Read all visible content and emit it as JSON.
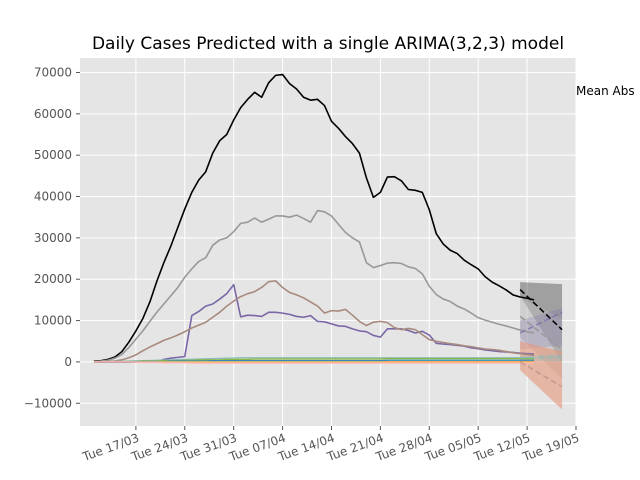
{
  "chart_data": {
    "type": "line",
    "title": "Daily Cases Predicted with a single ARIMA(3,2,3) model",
    "xlabel": "",
    "ylabel": "",
    "annotation": "Mean Abs",
    "grid": true,
    "style": "ggplot",
    "x_start": "2020-03-11",
    "x_end": "2020-05-17",
    "xlim": [
      "2020-03-09",
      "2020-05-19"
    ],
    "ylim": [
      -15500,
      73500
    ],
    "y_ticks": [
      -10000,
      0,
      10000,
      20000,
      30000,
      40000,
      50000,
      60000,
      70000
    ],
    "y_tick_labels": [
      "−10000",
      "0",
      "10000",
      "20000",
      "30000",
      "40000",
      "50000",
      "60000",
      "70000"
    ],
    "x_ticks": [
      {
        "date": "2020-03-17",
        "label": "Tue 17/03"
      },
      {
        "date": "2020-03-24",
        "label": "Tue 24/03"
      },
      {
        "date": "2020-03-31",
        "label": "Tue 31/03"
      },
      {
        "date": "2020-04-07",
        "label": "Tue 07/04"
      },
      {
        "date": "2020-04-14",
        "label": "Tue 14/04"
      },
      {
        "date": "2020-04-21",
        "label": "Tue 21/04"
      },
      {
        "date": "2020-04-28",
        "label": "Tue 28/04"
      },
      {
        "date": "2020-05-05",
        "label": "Tue 05/05"
      },
      {
        "date": "2020-05-12",
        "label": "Tue 12/05"
      },
      {
        "date": "2020-05-19",
        "label": "Tue 19/05"
      }
    ],
    "series": [
      {
        "color": "#000000",
        "width": 1.6,
        "values": [
          200,
          300,
          600,
          1200,
          2500,
          4800,
          7500,
          10500,
          14500,
          19500,
          24000,
          28000,
          32500,
          37000,
          41000,
          44000,
          46000,
          50500,
          53500,
          55000,
          58500,
          61500,
          63500,
          65200,
          64000,
          67500,
          69300,
          69500,
          67300,
          66000,
          64000,
          63300,
          63500,
          62000,
          58200,
          56500,
          54500,
          52800,
          50500,
          44500,
          39800,
          41000,
          44700,
          44800,
          43800,
          41700,
          41500,
          41000,
          36800,
          31000,
          28500,
          27000,
          26200,
          24600,
          23500,
          22500,
          20600,
          19300,
          18400,
          17400,
          16200,
          15700,
          15400,
          15000
        ]
      },
      {
        "color": "#999999",
        "width": 1.6,
        "values": [
          100,
          200,
          400,
          900,
          1800,
          3500,
          5500,
          7500,
          9800,
          12000,
          14000,
          16000,
          18000,
          20500,
          22500,
          24300,
          25200,
          28200,
          29500,
          30000,
          31500,
          33500,
          33800,
          34800,
          33800,
          34500,
          35300,
          35300,
          35000,
          35500,
          34700,
          33800,
          36600,
          36300,
          35300,
          33300,
          31300,
          30000,
          29000,
          24000,
          22800,
          23300,
          23900,
          24000,
          23800,
          23000,
          22600,
          21300,
          18300,
          16300,
          15200,
          14600,
          13500,
          12800,
          11800,
          10700,
          10100,
          9600,
          9100,
          8700,
          8200,
          7700,
          7300,
          7000
        ]
      },
      {
        "color": "#777777",
        "width": 1.6,
        "values": [
          0,
          0,
          0,
          0,
          0,
          0,
          0,
          0,
          0,
          0,
          0,
          0,
          0,
          0,
          0,
          0,
          0,
          0,
          0,
          0,
          0,
          0,
          0,
          0,
          0,
          0,
          0,
          0,
          0,
          0,
          0,
          0,
          0,
          0,
          0,
          0,
          0,
          0,
          0,
          0,
          0,
          0,
          0,
          0,
          0,
          0,
          0,
          0,
          0,
          0,
          0,
          0,
          0,
          0,
          0,
          0,
          0,
          0,
          0,
          0,
          0,
          0,
          0,
          0
        ]
      },
      {
        "color": "#7a68a6",
        "width": 1.6,
        "values": [
          0,
          0,
          0,
          0,
          0,
          0,
          0,
          0,
          0,
          0,
          600,
          900,
          1100,
          1300,
          11200,
          12200,
          13500,
          14000,
          15200,
          16500,
          18700,
          10900,
          11300,
          11200,
          11000,
          12000,
          12000,
          11800,
          11500,
          11000,
          10800,
          11200,
          9800,
          9700,
          9200,
          8700,
          8600,
          8000,
          7500,
          7300,
          6400,
          6000,
          8000,
          8000,
          8000,
          7600,
          7000,
          7400,
          6500,
          4500,
          4300,
          4200,
          4000,
          3800,
          3400,
          3200,
          2900,
          2700,
          2500,
          2400,
          2300,
          2100,
          2000,
          1900
        ]
      },
      {
        "color": "#a88a7e",
        "width": 1.6,
        "values": [
          0,
          0,
          100,
          200,
          500,
          1000,
          1700,
          2700,
          3600,
          4400,
          5200,
          5800,
          6500,
          7300,
          8200,
          8900,
          9600,
          10800,
          12000,
          13500,
          14700,
          15800,
          16500,
          17000,
          18000,
          19400,
          19600,
          18000,
          16800,
          16200,
          15500,
          14500,
          13500,
          11800,
          12400,
          12300,
          12700,
          11300,
          9800,
          8800,
          9600,
          9800,
          9500,
          8300,
          7800,
          8100,
          7800,
          6600,
          5400,
          5000,
          4700,
          4400,
          4200,
          3900,
          3700,
          3400,
          3100,
          3000,
          2800,
          2500,
          2200,
          2000,
          1800,
          1600
        ]
      },
      {
        "color": "#88bbbb",
        "width": 1.3,
        "values": [
          0,
          0,
          50,
          100,
          150,
          200,
          250,
          300,
          350,
          400,
          450,
          500,
          550,
          600,
          650,
          700,
          750,
          800,
          850,
          900,
          950,
          1000,
          1000,
          1000,
          1000,
          1000,
          1000,
          1000,
          1000,
          1000,
          1000,
          1000,
          1000,
          1000,
          1000,
          1000,
          1000,
          1000,
          1000,
          1000,
          1000,
          1000,
          1000,
          1000,
          1000,
          1000,
          1000,
          1000,
          1000,
          1000,
          1000,
          1000,
          1000,
          1000,
          1000,
          1000,
          1000,
          1000,
          1000,
          1000,
          1000,
          1000,
          1000,
          1000
        ]
      },
      {
        "color": "#8eba42",
        "width": 1.3,
        "values": [
          0,
          0,
          0,
          0,
          100,
          100,
          100,
          200,
          200,
          200,
          300,
          300,
          300,
          400,
          400,
          500,
          500,
          500,
          500,
          600,
          600,
          600,
          600,
          700,
          700,
          700,
          700,
          700,
          700,
          700,
          700,
          700,
          700,
          700,
          700,
          700,
          700,
          700,
          700,
          700,
          700,
          700,
          800,
          800,
          800,
          800,
          800,
          800,
          800,
          800,
          800,
          800,
          800,
          800,
          800,
          800,
          800,
          800,
          800,
          800,
          800,
          800,
          800,
          800
        ]
      },
      {
        "color": "#e24a33",
        "width": 1.3,
        "values": [
          0,
          0,
          0,
          0,
          0,
          0,
          0,
          0,
          0,
          0,
          0,
          0,
          0,
          0,
          0,
          0,
          0,
          0,
          0,
          0,
          0,
          0,
          0,
          0,
          0,
          0,
          0,
          0,
          0,
          0,
          0,
          0,
          0,
          0,
          0,
          0,
          0,
          0,
          0,
          0,
          0,
          0,
          0,
          0,
          0,
          0,
          0,
          0,
          0,
          0,
          0,
          0,
          0,
          0,
          0,
          0,
          0,
          0,
          0,
          0,
          0,
          0,
          0,
          0
        ]
      },
      {
        "color": "#348abd",
        "width": 1.3,
        "values": [
          0,
          0,
          0,
          0,
          0,
          0,
          100,
          100,
          100,
          100,
          100,
          200,
          200,
          200,
          200,
          200,
          200,
          300,
          300,
          300,
          300,
          300,
          300,
          300,
          300,
          300,
          300,
          300,
          300,
          300,
          300,
          300,
          300,
          300,
          300,
          300,
          300,
          300,
          300,
          300,
          300,
          300,
          400,
          400,
          400,
          400,
          400,
          400,
          400,
          400,
          400,
          400,
          400,
          400,
          400,
          400,
          400,
          400,
          400,
          400,
          400,
          400,
          400,
          400
        ]
      },
      {
        "color": "#fbc15e",
        "width": 1.3,
        "values": [
          0,
          0,
          0,
          0,
          0,
          0,
          0,
          0,
          0,
          0,
          0,
          0,
          0,
          0,
          0,
          0,
          0,
          0,
          0,
          0,
          0,
          0,
          0,
          0,
          0,
          0,
          0,
          0,
          0,
          0,
          0,
          0,
          0,
          0,
          0,
          0,
          0,
          0,
          0,
          0,
          0,
          0,
          0,
          0,
          0,
          0,
          0,
          0,
          0,
          0,
          0,
          0,
          0,
          0,
          0,
          0,
          0,
          0,
          0,
          0,
          0,
          0,
          0,
          0
        ]
      },
      {
        "color": "#ffb5b8",
        "width": 1.3,
        "values": [
          0,
          0,
          0,
          0,
          0,
          0,
          -100,
          -100,
          -100,
          -100,
          -200,
          -200,
          -200,
          -200,
          -300,
          -300,
          -300,
          -300,
          -300,
          -300,
          -300,
          -300,
          -300,
          -300,
          -300,
          -300,
          -300,
          -300,
          -300,
          -300,
          -300,
          -300,
          -300,
          -300,
          -300,
          -300,
          -300,
          -300,
          -300,
          -300,
          -300,
          -300,
          -300,
          -300,
          -300,
          -300,
          -300,
          -300,
          -300,
          -300,
          -300,
          -300,
          -300,
          -300,
          -300,
          -300,
          -300,
          -300,
          -300,
          -300,
          -300,
          -300,
          -300,
          -300
        ]
      }
    ],
    "forecasts": [
      {
        "color": "#000000",
        "band_color": "#000000",
        "band_opacity": 0.3,
        "line_opacity": 1.0,
        "dates": [
          "2020-05-11",
          "2020-05-17"
        ],
        "values": [
          17500,
          7800
        ],
        "lower": [
          16000,
          0
        ],
        "upper": [
          19300,
          18800
        ]
      },
      {
        "color": "#999999",
        "band_color": "#bbbbbb",
        "band_opacity": 0.55,
        "line_opacity": 1.0,
        "dates": [
          "2020-05-11",
          "2020-05-17"
        ],
        "values": [
          11000,
          3000
        ],
        "lower": [
          6000,
          -4000
        ],
        "upper": [
          15500,
          10500
        ]
      },
      {
        "color": "#7a68a6",
        "band_color": "#7a68a6",
        "band_opacity": 0.25,
        "line_opacity": 0.7,
        "dates": [
          "2020-05-11",
          "2020-05-17"
        ],
        "values": [
          7000,
          12000
        ],
        "lower": [
          3000,
          4000
        ],
        "upper": [
          10000,
          13000
        ]
      },
      {
        "color": "#a88a7e",
        "band_color": "#e6967a",
        "band_opacity": 0.6,
        "line_opacity": 0.6,
        "dates": [
          "2020-05-11",
          "2020-05-17"
        ],
        "values": [
          0,
          -6000
        ],
        "lower": [
          -2000,
          -11500
        ],
        "upper": [
          5000,
          2500
        ]
      },
      {
        "color": "#88bbbb",
        "band_color": "#88bbbb",
        "band_opacity": 0.3,
        "line_opacity": 0.8,
        "dates": [
          "2020-05-11",
          "2020-05-17"
        ],
        "values": [
          1000,
          1100
        ],
        "lower": [
          500,
          0
        ],
        "upper": [
          1500,
          2000
        ]
      }
    ]
  }
}
